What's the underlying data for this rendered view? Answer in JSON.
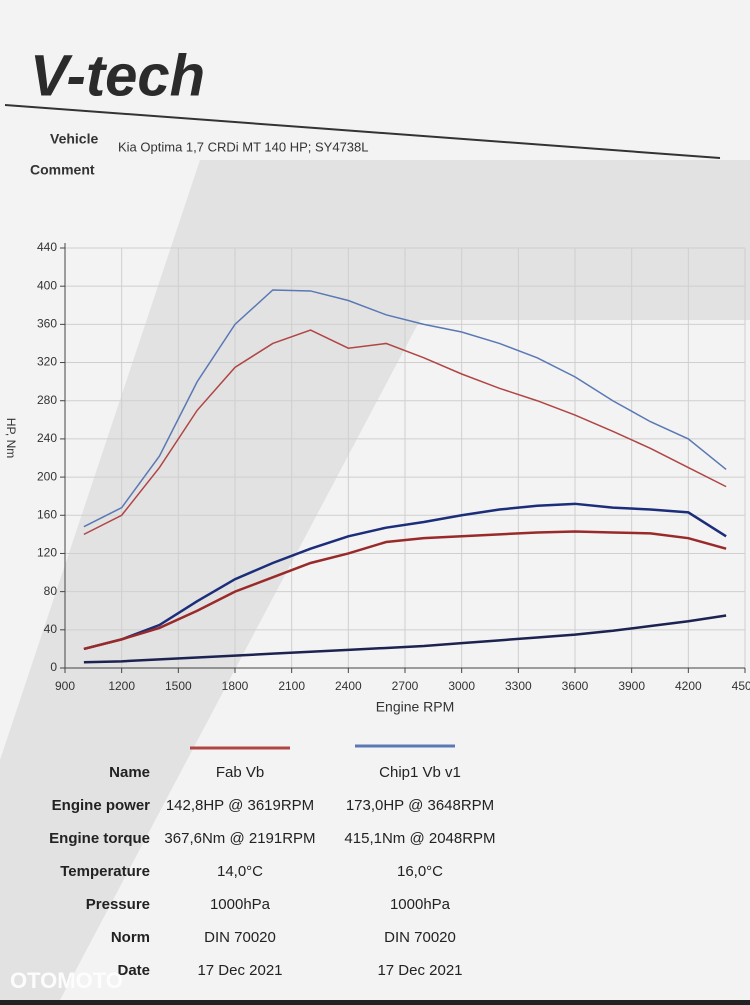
{
  "header": {
    "logo": "V-tech",
    "vehicle_label": "Vehicle",
    "vehicle": "Kia Optima 1,7 CRDi MT 140 HP; SY4738L",
    "comment_label": "Comment"
  },
  "chart_data": {
    "type": "line",
    "xlabel": "Engine RPM",
    "ylabel": "HP, Nm",
    "x": [
      1000,
      1200,
      1400,
      1600,
      1800,
      2000,
      2200,
      2400,
      2600,
      2800,
      3000,
      3200,
      3400,
      3600,
      3800,
      4000,
      4200,
      4400
    ],
    "series": [
      {
        "name": "Chip1 Vb v1",
        "color": "#5a78b4",
        "values": [
          148,
          168,
          222,
          300,
          360,
          396,
          395,
          385,
          370,
          360,
          352,
          340,
          325,
          305,
          280,
          258,
          240,
          208
        ]
      },
      {
        "name": "Fab Vb",
        "color": "#b04545",
        "values": [
          140,
          160,
          210,
          270,
          315,
          340,
          354,
          335,
          340,
          325,
          308,
          293,
          280,
          265,
          248,
          230,
          210,
          190
        ]
      },
      {
        "name": "Chip1 Vb v1",
        "color": "#1c2d7a",
        "values": [
          20,
          30,
          45,
          70,
          93,
          110,
          125,
          138,
          147,
          153,
          160,
          166,
          170,
          172,
          168,
          166,
          163,
          138
        ]
      },
      {
        "name": "Fab Vb",
        "color": "#9a2a2a",
        "values": [
          20,
          30,
          42,
          60,
          80,
          95,
          110,
          120,
          132,
          136,
          138,
          140,
          142,
          143,
          142,
          141,
          136,
          125
        ]
      },
      {
        "color": "#1c2350",
        "values": [
          6,
          7,
          9,
          11,
          13,
          15,
          17,
          19,
          21,
          23,
          26,
          29,
          32,
          35,
          39,
          44,
          49,
          55
        ]
      }
    ],
    "xlim": [
      900,
      4500
    ],
    "ylim": [
      0,
      440
    ],
    "xticks": [
      900,
      1200,
      1500,
      1800,
      2100,
      2400,
      2700,
      3000,
      3300,
      3600,
      3900,
      4200,
      4500
    ],
    "yticks": [
      0,
      40,
      80,
      120,
      160,
      200,
      240,
      280,
      320,
      360,
      400,
      440
    ],
    "grid": true
  },
  "table": {
    "rows": [
      [
        "Engine power",
        "142,8HP @ 3619RPM",
        "173,0HP @ 3648RPM"
      ],
      [
        "Engine torque",
        "367,6Nm @ 2191RPM",
        "415,1Nm @ 2048RPM"
      ],
      [
        "Temperature",
        "14,0°C",
        "16,0°C"
      ],
      [
        "Pressure",
        "1000hPa",
        "1000hPa"
      ],
      [
        "Norm",
        "DIN 70020",
        "DIN 70020"
      ],
      [
        "Date",
        "17 Dec 2021",
        "17 Dec 2021"
      ]
    ],
    "name_label": "Name"
  },
  "watermark": "OTOMOTO"
}
